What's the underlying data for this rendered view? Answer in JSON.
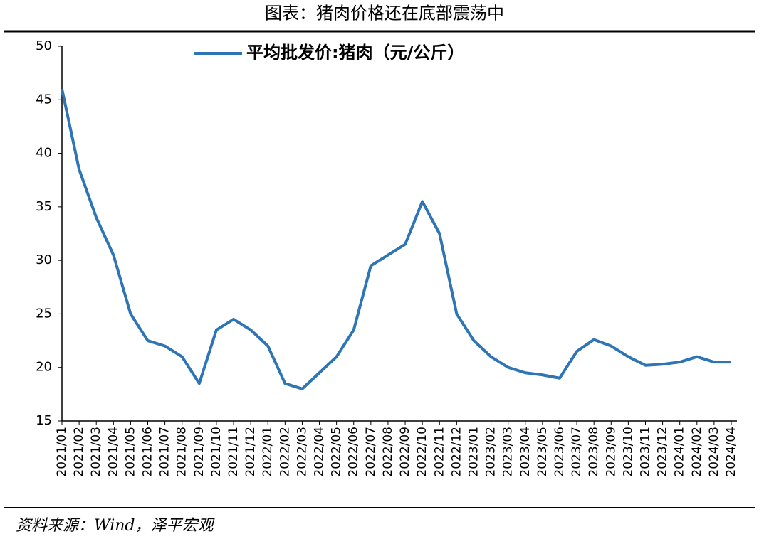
{
  "chart_data": {
    "type": "line",
    "title": "图表：猪肉价格还在底部震荡中",
    "source": "资料来源：Wind，泽平宏观",
    "categories": [
      "2021/01",
      "2021/02",
      "2021/03",
      "2021/04",
      "2021/05",
      "2021/06",
      "2021/07",
      "2021/08",
      "2021/09",
      "2021/10",
      "2021/11",
      "2021/12",
      "2022/01",
      "2022/02",
      "2022/03",
      "2022/04",
      "2022/05",
      "2022/06",
      "2022/07",
      "2022/08",
      "2022/09",
      "2022/10",
      "2022/11",
      "2022/12",
      "2023/01",
      "2023/02",
      "2023/03",
      "2023/04",
      "2023/05",
      "2023/06",
      "2023/07",
      "2023/08",
      "2023/09",
      "2023/10",
      "2023/11",
      "2023/12",
      "2024/01",
      "2024/02",
      "2024/03",
      "2024/04"
    ],
    "series": [
      {
        "name": "平均批发价:猪肉（元/公斤）",
        "color": "#2e75b6",
        "values": [
          46,
          38.5,
          34,
          30.5,
          25,
          22.5,
          22,
          21,
          18.5,
          23.5,
          24.5,
          23.5,
          22,
          18.5,
          18,
          19.5,
          21,
          23.5,
          29.5,
          30.5,
          31.5,
          35.5,
          32.5,
          25,
          22.5,
          21,
          20,
          19.5,
          19.3,
          19,
          21.5,
          22.6,
          22,
          21,
          20.2,
          20.3,
          20.5,
          21,
          20.5,
          20.5
        ]
      }
    ],
    "ylim": [
      15,
      50
    ],
    "yticks": [
      15,
      20,
      25,
      30,
      35,
      40,
      45,
      50
    ],
    "legend": "top"
  }
}
